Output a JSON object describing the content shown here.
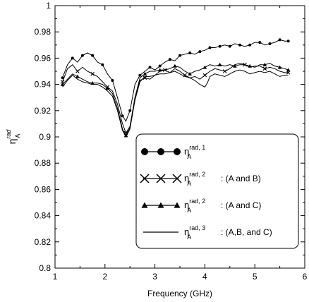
{
  "chart_data": {
    "type": "line",
    "title": "",
    "xlabel": "Frequency (GHz)",
    "ylabel": "η_A^rad",
    "xlim": [
      1,
      6
    ],
    "ylim": [
      0.8,
      1.0
    ],
    "x_ticks": [
      "1",
      "2",
      "3",
      "4",
      "5",
      "6"
    ],
    "y_ticks": [
      "0.8",
      "0.82",
      "0.84",
      "0.86",
      "0.88",
      "0.9",
      "0.92",
      "0.94",
      "0.96",
      "0.98",
      "1"
    ],
    "grid": false,
    "legend_position": "lower-right",
    "series": [
      {
        "name": "rad, 1",
        "legend_main": "η",
        "legend_sup": "rad, 1",
        "legend_sub": "A",
        "legend_suffix": "",
        "marker": "circle",
        "points": [
          [
            1.15,
            0.945
          ],
          [
            1.25,
            0.955
          ],
          [
            1.35,
            0.96
          ],
          [
            1.45,
            0.957
          ],
          [
            1.55,
            0.962
          ],
          [
            1.65,
            0.964
          ],
          [
            1.75,
            0.962
          ],
          [
            1.85,
            0.957
          ],
          [
            1.95,
            0.955
          ],
          [
            2.05,
            0.948
          ],
          [
            2.15,
            0.943
          ],
          [
            2.25,
            0.93
          ],
          [
            2.35,
            0.916
          ],
          [
            2.42,
            0.912
          ],
          [
            2.5,
            0.92
          ],
          [
            2.6,
            0.94
          ],
          [
            2.7,
            0.947
          ],
          [
            2.8,
            0.95
          ],
          [
            2.9,
            0.953
          ],
          [
            3.0,
            0.951
          ],
          [
            3.1,
            0.954
          ],
          [
            3.2,
            0.957
          ],
          [
            3.3,
            0.959
          ],
          [
            3.4,
            0.958
          ],
          [
            3.5,
            0.962
          ],
          [
            3.6,
            0.963
          ],
          [
            3.7,
            0.964
          ],
          [
            3.8,
            0.963
          ],
          [
            3.9,
            0.965
          ],
          [
            4.0,
            0.966
          ],
          [
            4.1,
            0.968
          ],
          [
            4.2,
            0.968
          ],
          [
            4.3,
            0.969
          ],
          [
            4.4,
            0.97
          ],
          [
            4.5,
            0.969
          ],
          [
            4.6,
            0.971
          ],
          [
            4.7,
            0.97
          ],
          [
            4.8,
            0.969
          ],
          [
            4.9,
            0.97
          ],
          [
            5.0,
            0.972
          ],
          [
            5.1,
            0.972
          ],
          [
            5.2,
            0.97
          ],
          [
            5.3,
            0.971
          ],
          [
            5.4,
            0.972
          ],
          [
            5.5,
            0.974
          ],
          [
            5.6,
            0.973
          ],
          [
            5.67,
            0.973
          ]
        ],
        "marker_points": [
          [
            1.15,
            0.945
          ],
          [
            1.35,
            0.96
          ],
          [
            1.55,
            0.962
          ],
          [
            1.75,
            0.962
          ],
          [
            1.95,
            0.955
          ],
          [
            2.15,
            0.943
          ],
          [
            2.35,
            0.916
          ],
          [
            2.5,
            0.92
          ],
          [
            2.7,
            0.947
          ],
          [
            2.9,
            0.953
          ],
          [
            3.1,
            0.954
          ],
          [
            3.3,
            0.959
          ],
          [
            3.5,
            0.962
          ],
          [
            3.7,
            0.964
          ],
          [
            3.9,
            0.965
          ],
          [
            4.1,
            0.968
          ],
          [
            4.3,
            0.969
          ],
          [
            4.5,
            0.969
          ],
          [
            4.7,
            0.97
          ],
          [
            4.9,
            0.97
          ],
          [
            5.1,
            0.972
          ],
          [
            5.3,
            0.971
          ],
          [
            5.5,
            0.974
          ],
          [
            5.67,
            0.973
          ]
        ]
      },
      {
        "name": "rad, 2 : (A and B)",
        "legend_main": "η",
        "legend_sup": "rad, 2",
        "legend_sub": "A",
        "legend_suffix": ": (A and B)",
        "marker": "x",
        "points": [
          [
            1.15,
            0.942
          ],
          [
            1.25,
            0.952
          ],
          [
            1.35,
            0.955
          ],
          [
            1.45,
            0.95
          ],
          [
            1.55,
            0.953
          ],
          [
            1.65,
            0.95
          ],
          [
            1.75,
            0.948
          ],
          [
            1.85,
            0.946
          ],
          [
            1.95,
            0.942
          ],
          [
            2.05,
            0.938
          ],
          [
            2.15,
            0.935
          ],
          [
            2.25,
            0.925
          ],
          [
            2.35,
            0.91
          ],
          [
            2.42,
            0.903
          ],
          [
            2.5,
            0.908
          ],
          [
            2.6,
            0.93
          ],
          [
            2.7,
            0.943
          ],
          [
            2.8,
            0.945
          ],
          [
            2.9,
            0.944
          ],
          [
            3.0,
            0.947
          ],
          [
            3.1,
            0.95
          ],
          [
            3.2,
            0.951
          ],
          [
            3.3,
            0.949
          ],
          [
            3.4,
            0.952
          ],
          [
            3.5,
            0.95
          ],
          [
            3.6,
            0.947
          ],
          [
            3.7,
            0.945
          ],
          [
            3.8,
            0.946
          ],
          [
            3.9,
            0.944
          ],
          [
            4.0,
            0.947
          ],
          [
            4.1,
            0.95
          ],
          [
            4.2,
            0.952
          ],
          [
            4.3,
            0.951
          ],
          [
            4.4,
            0.95
          ],
          [
            4.5,
            0.952
          ],
          [
            4.6,
            0.955
          ],
          [
            4.7,
            0.956
          ],
          [
            4.8,
            0.955
          ],
          [
            4.9,
            0.953
          ],
          [
            5.0,
            0.954
          ],
          [
            5.1,
            0.954
          ],
          [
            5.2,
            0.952
          ],
          [
            5.3,
            0.953
          ],
          [
            5.4,
            0.952
          ],
          [
            5.5,
            0.95
          ],
          [
            5.6,
            0.949
          ],
          [
            5.67,
            0.949
          ]
        ],
        "marker_points": [
          [
            1.15,
            0.942
          ],
          [
            1.45,
            0.95
          ],
          [
            1.75,
            0.948
          ],
          [
            2.05,
            0.938
          ],
          [
            2.42,
            0.903
          ],
          [
            2.8,
            0.945
          ],
          [
            3.2,
            0.951
          ],
          [
            3.6,
            0.947
          ],
          [
            4.0,
            0.947
          ],
          [
            4.4,
            0.95
          ],
          [
            4.8,
            0.955
          ],
          [
            5.2,
            0.952
          ],
          [
            5.67,
            0.949
          ]
        ]
      },
      {
        "name": "rad, 2 : (A and C)",
        "legend_main": "η",
        "legend_sup": "rad, 2",
        "legend_sub": "A",
        "legend_suffix": ": (A and C)",
        "marker": "triangle",
        "points": [
          [
            1.15,
            0.94
          ],
          [
            1.25,
            0.944
          ],
          [
            1.35,
            0.948
          ],
          [
            1.45,
            0.946
          ],
          [
            1.55,
            0.944
          ],
          [
            1.65,
            0.942
          ],
          [
            1.75,
            0.941
          ],
          [
            1.85,
            0.941
          ],
          [
            1.95,
            0.94
          ],
          [
            2.05,
            0.937
          ],
          [
            2.15,
            0.933
          ],
          [
            2.25,
            0.922
          ],
          [
            2.35,
            0.906
          ],
          [
            2.42,
            0.901
          ],
          [
            2.5,
            0.907
          ],
          [
            2.6,
            0.93
          ],
          [
            2.7,
            0.945
          ],
          [
            2.8,
            0.948
          ],
          [
            2.9,
            0.95
          ],
          [
            3.0,
            0.95
          ],
          [
            3.1,
            0.951
          ],
          [
            3.2,
            0.951
          ],
          [
            3.3,
            0.952
          ],
          [
            3.4,
            0.954
          ],
          [
            3.5,
            0.953
          ],
          [
            3.6,
            0.95
          ],
          [
            3.7,
            0.948
          ],
          [
            3.8,
            0.95
          ],
          [
            3.9,
            0.951
          ],
          [
            4.0,
            0.953
          ],
          [
            4.1,
            0.955
          ],
          [
            4.2,
            0.954
          ],
          [
            4.3,
            0.955
          ],
          [
            4.4,
            0.954
          ],
          [
            4.5,
            0.955
          ],
          [
            4.6,
            0.954
          ],
          [
            4.7,
            0.955
          ],
          [
            4.8,
            0.955
          ],
          [
            4.9,
            0.954
          ],
          [
            5.0,
            0.953
          ],
          [
            5.1,
            0.955
          ],
          [
            5.2,
            0.955
          ],
          [
            5.3,
            0.956
          ],
          [
            5.4,
            0.954
          ],
          [
            5.5,
            0.953
          ],
          [
            5.6,
            0.952
          ],
          [
            5.67,
            0.951
          ]
        ],
        "marker_points": [
          [
            1.15,
            0.94
          ],
          [
            1.45,
            0.946
          ],
          [
            1.75,
            0.941
          ],
          [
            2.05,
            0.937
          ],
          [
            2.42,
            0.901
          ],
          [
            2.8,
            0.948
          ],
          [
            3.1,
            0.951
          ],
          [
            3.4,
            0.954
          ],
          [
            3.7,
            0.948
          ],
          [
            4.0,
            0.953
          ],
          [
            4.3,
            0.955
          ],
          [
            4.6,
            0.954
          ],
          [
            4.9,
            0.954
          ],
          [
            5.2,
            0.955
          ],
          [
            5.5,
            0.953
          ],
          [
            5.67,
            0.951
          ]
        ]
      },
      {
        "name": "rad, 3 : (A,B, and C)",
        "legend_main": "η",
        "legend_sup": "rad, 3",
        "legend_sub": "A",
        "legend_suffix": ": (A,B, and C)",
        "marker": "none",
        "points": [
          [
            1.15,
            0.938
          ],
          [
            1.25,
            0.943
          ],
          [
            1.35,
            0.947
          ],
          [
            1.45,
            0.944
          ],
          [
            1.55,
            0.942
          ],
          [
            1.65,
            0.941
          ],
          [
            1.75,
            0.94
          ],
          [
            1.85,
            0.94
          ],
          [
            1.95,
            0.938
          ],
          [
            2.05,
            0.935
          ],
          [
            2.15,
            0.931
          ],
          [
            2.25,
            0.92
          ],
          [
            2.35,
            0.905
          ],
          [
            2.42,
            0.9
          ],
          [
            2.5,
            0.906
          ],
          [
            2.6,
            0.928
          ],
          [
            2.7,
            0.942
          ],
          [
            2.8,
            0.946
          ],
          [
            2.9,
            0.946
          ],
          [
            3.0,
            0.947
          ],
          [
            3.1,
            0.948
          ],
          [
            3.2,
            0.948
          ],
          [
            3.3,
            0.949
          ],
          [
            3.4,
            0.95
          ],
          [
            3.5,
            0.948
          ],
          [
            3.6,
            0.946
          ],
          [
            3.7,
            0.945
          ],
          [
            3.8,
            0.943
          ],
          [
            3.9,
            0.94
          ],
          [
            4.0,
            0.938
          ],
          [
            4.05,
            0.941
          ],
          [
            4.1,
            0.946
          ],
          [
            4.2,
            0.948
          ],
          [
            4.3,
            0.947
          ],
          [
            4.4,
            0.946
          ],
          [
            4.5,
            0.948
          ],
          [
            4.6,
            0.95
          ],
          [
            4.7,
            0.951
          ],
          [
            4.8,
            0.95
          ],
          [
            4.9,
            0.948
          ],
          [
            5.0,
            0.949
          ],
          [
            5.1,
            0.95
          ],
          [
            5.2,
            0.949
          ],
          [
            5.3,
            0.95
          ],
          [
            5.4,
            0.948
          ],
          [
            5.5,
            0.946
          ],
          [
            5.6,
            0.947
          ],
          [
            5.67,
            0.947
          ]
        ]
      }
    ]
  }
}
